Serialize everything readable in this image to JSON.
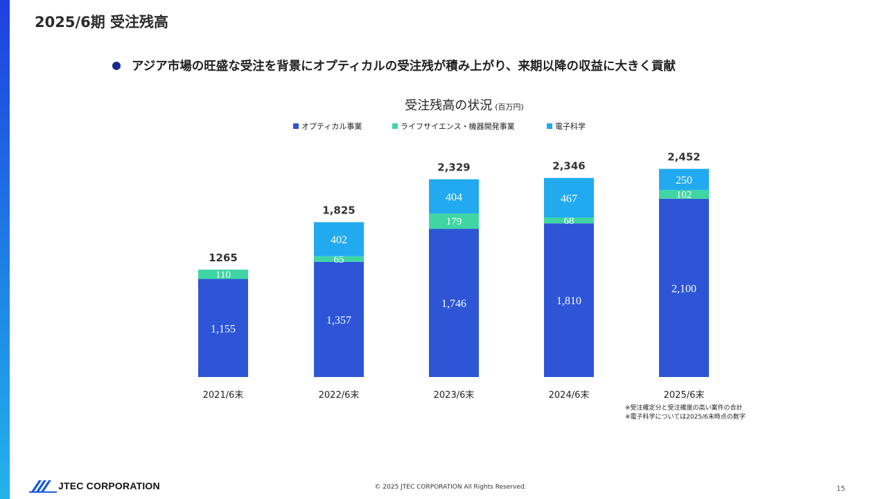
{
  "page": {
    "title": "2025/6期 受注残高",
    "bullet": "アジア市場の旺盛な受注を背景にオプティカルの受注残が積み上がり、来期以降の収益に大きく貢献",
    "footer_company": "JTEC CORPORATION",
    "copyright": "© 2025 JTEC CORPORATION All Rights Reserved.",
    "page_number": "15",
    "notes": [
      "※受注確定分と受注確度の高い案件の合計",
      "※電子科学については2025/6末時点の数字"
    ]
  },
  "chart_data": {
    "type": "bar",
    "stacked": true,
    "title": "受注残高の状況",
    "unit": "(百万円)",
    "categories": [
      "2021/6末",
      "2022/6末",
      "2023/6末",
      "2024/6末",
      "2025/6末"
    ],
    "series": [
      {
        "name": "オプティカル事業",
        "color": "#2d55d6",
        "values": [
          1155,
          1357,
          1746,
          1810,
          2100
        ],
        "labels": [
          "1,155",
          "1,357",
          "1,746",
          "1,810",
          "2,100"
        ]
      },
      {
        "name": "ライフサイエンス・機器開発事業",
        "color": "#3fd6a3",
        "values": [
          110,
          65,
          179,
          68,
          102
        ],
        "labels": [
          "110",
          "65",
          "179",
          "68",
          "102"
        ]
      },
      {
        "name": "電子科学",
        "color": "#22aaf0",
        "values": [
          0,
          402,
          404,
          467,
          250
        ],
        "labels": [
          "",
          "402",
          "404",
          "467",
          "250"
        ]
      }
    ],
    "totals": [
      "1265",
      "1,825",
      "2,329",
      "2,346",
      "2,452"
    ],
    "ylim": [
      0,
      2500
    ],
    "legend_position": "top",
    "grid": false
  }
}
